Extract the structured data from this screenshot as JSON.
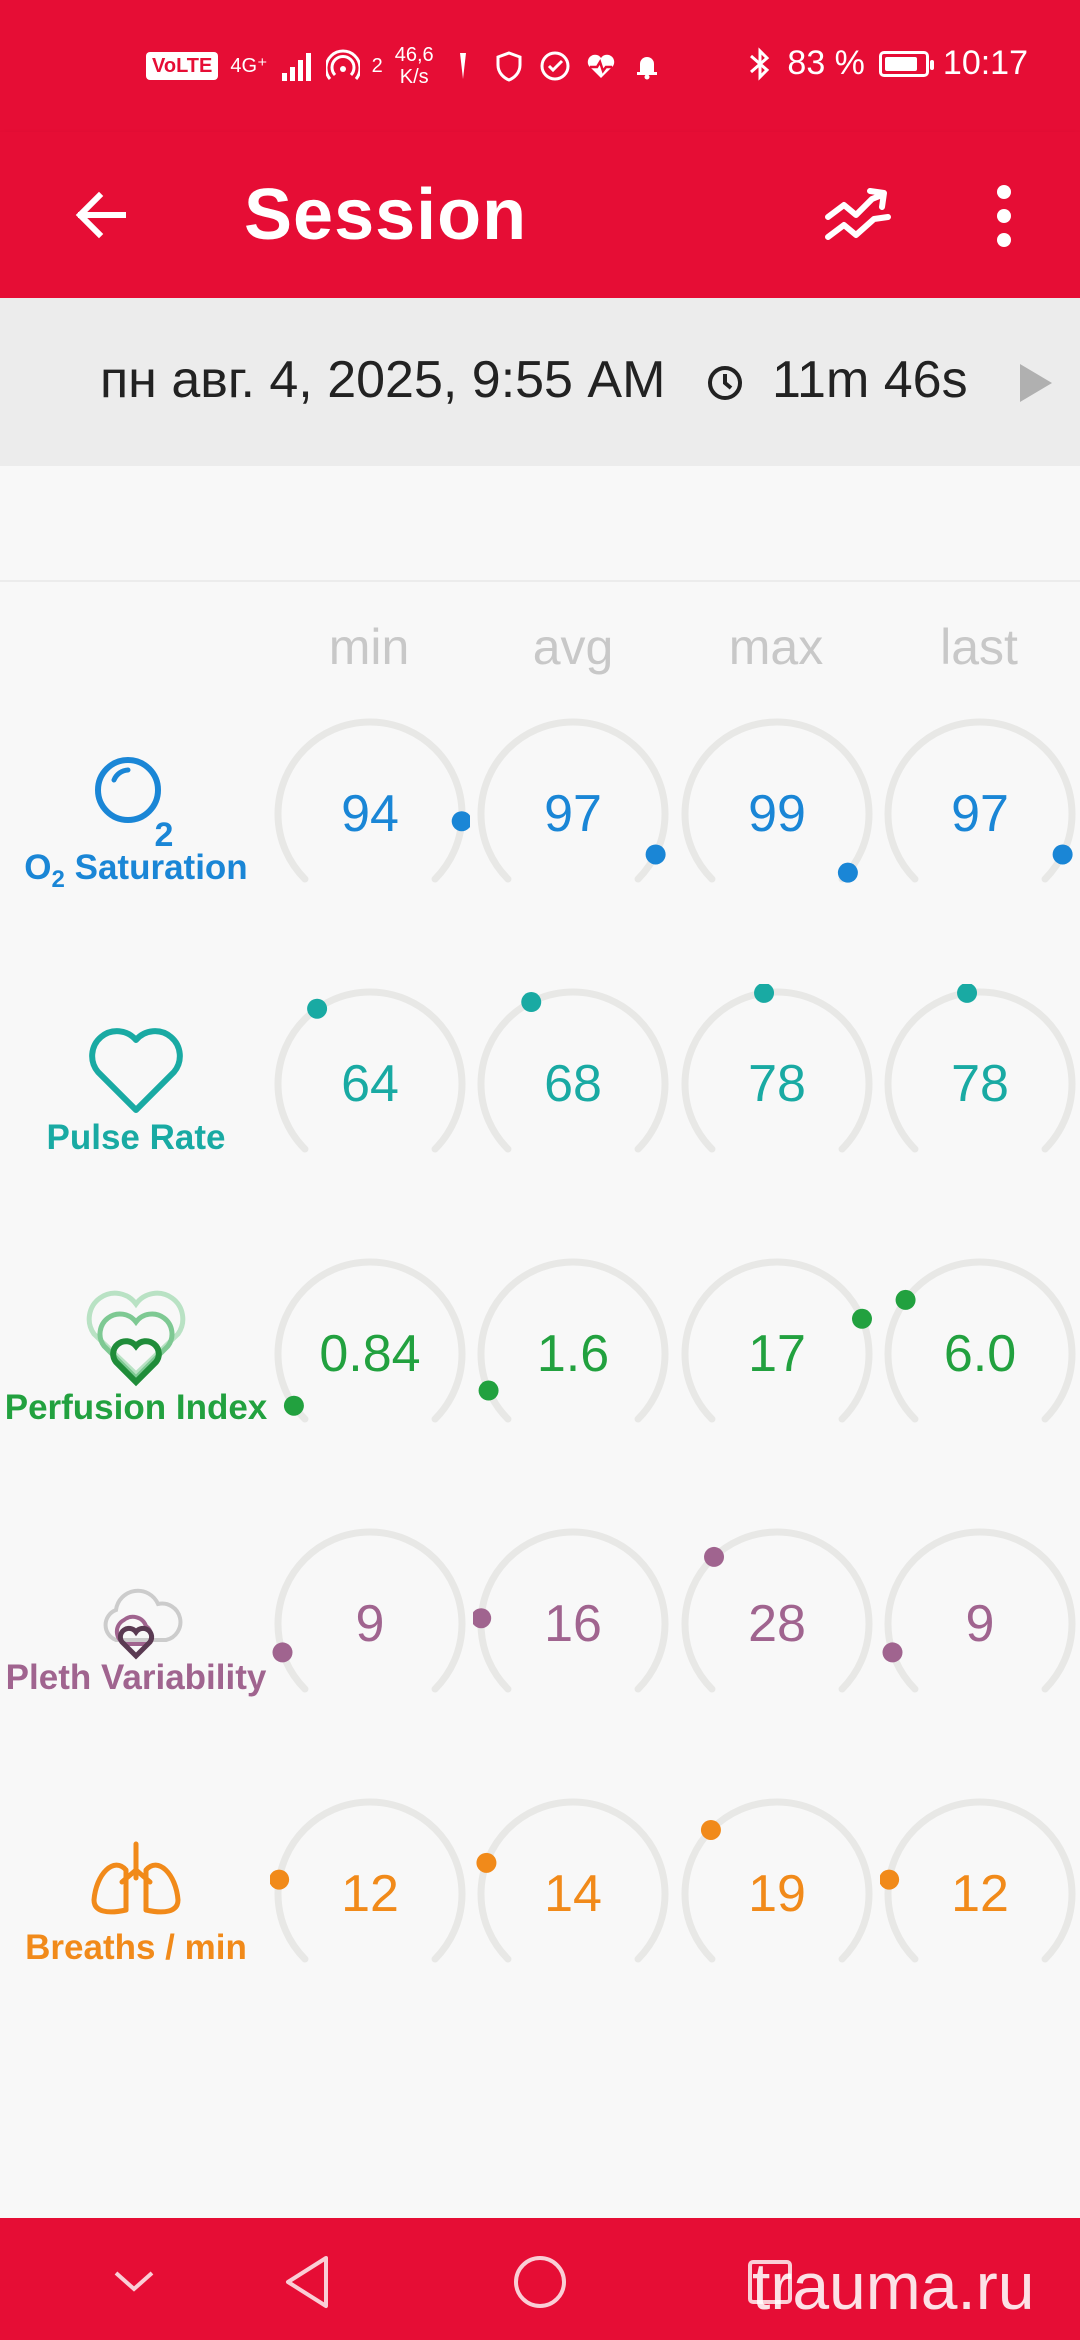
{
  "status_bar": {
    "volte": "VoLTE",
    "network": "4G⁺",
    "hotspot_count": "2",
    "speed_value": "46,6",
    "speed_unit": "K/s",
    "battery_text": "83 %",
    "battery_level_pct": 83,
    "time": "10:17"
  },
  "app_bar": {
    "title": "Session",
    "back_icon": "arrow-back-icon",
    "trends_icon": "trending-icon",
    "menu_icon": "more-vert-icon"
  },
  "session": {
    "date": "пн авг. 4, 2025, 9:55 AM",
    "duration": "11m 46s"
  },
  "columns": [
    "min",
    "avg",
    "max",
    "last"
  ],
  "metrics": [
    {
      "key": "spo2",
      "label_main": "O",
      "label_sub": "2",
      "label_rest": " Saturation",
      "icon": "o2-bubble-icon",
      "color": "#1a86d6",
      "values": [
        "94",
        "97",
        "99",
        "97"
      ],
      "levels": [
        0.85,
        0.93,
        0.98,
        0.93
      ]
    },
    {
      "key": "pulse",
      "label": "Pulse Rate",
      "icon": "heart-outline-icon",
      "color": "#19aaa3",
      "values": [
        "64",
        "68",
        "78",
        "78"
      ],
      "levels": [
        0.37,
        0.4,
        0.47,
        0.47
      ]
    },
    {
      "key": "pi",
      "label": "Perfusion Index",
      "icon": "layered-hearts-icon",
      "color": "#22a13f",
      "values": [
        "0.84",
        "1.6",
        "17",
        "6.0"
      ],
      "levels": [
        0.04,
        0.08,
        0.75,
        0.3
      ]
    },
    {
      "key": "pvi",
      "label": "Pleth Variability",
      "icon": "cloud-heart-icon",
      "color": "#a0648f",
      "values": [
        "9",
        "16",
        "28",
        "9"
      ],
      "levels": [
        0.1,
        0.18,
        0.34,
        0.1
      ]
    },
    {
      "key": "rr",
      "label": "Breaths / min",
      "icon": "lungs-icon",
      "color": "#f18a1a",
      "values": [
        "12",
        "14",
        "19",
        "12"
      ],
      "levels": [
        0.2,
        0.24,
        0.33,
        0.2
      ]
    }
  ],
  "nav_bar": {
    "icons": [
      "chevron-down-icon",
      "back-triangle-icon",
      "home-circle-icon",
      "recents-square-icon"
    ]
  },
  "watermark": "trauma.ru"
}
